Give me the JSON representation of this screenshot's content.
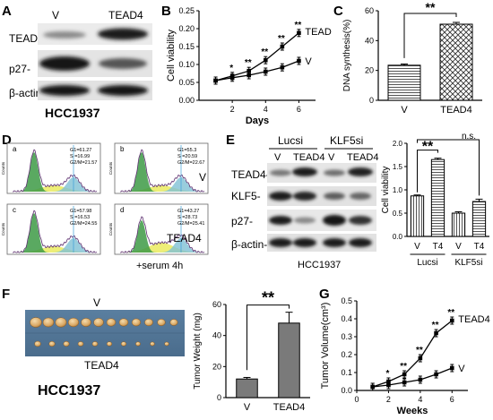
{
  "panels": {
    "a": "A",
    "b": "B",
    "c": "C",
    "d": "D",
    "e": "E",
    "f": "F",
    "g": "G"
  },
  "panelA": {
    "cols": [
      "V",
      "TEAD4"
    ],
    "rows": [
      "TEAD4-",
      "p27-",
      "β-actin-"
    ],
    "cell_line": "HCC1937"
  },
  "panelB": {
    "chart_data": {
      "type": "line",
      "xlabel": "Days",
      "ylabel": "Cell viability",
      "xticks": [
        "2",
        "4",
        "6"
      ],
      "yticks": [
        "0.00",
        "0.05",
        "0.10",
        "0.15",
        "0.20",
        "0.25"
      ],
      "xlim": [
        0,
        7
      ],
      "ylim": [
        0,
        0.25
      ],
      "x": [
        1,
        2,
        3,
        4,
        5,
        6
      ],
      "series": [
        {
          "name": "TEAD4",
          "values": [
            0.055,
            0.068,
            0.082,
            0.112,
            0.15,
            0.188
          ]
        },
        {
          "name": "V",
          "values": [
            0.055,
            0.063,
            0.07,
            0.08,
            0.092,
            0.11
          ]
        }
      ],
      "annotations": [
        "*",
        "**",
        "**",
        "**",
        "**"
      ],
      "series_labels": [
        "TEAD4",
        "V"
      ]
    }
  },
  "panelC": {
    "chart_data": {
      "type": "bar",
      "categories": [
        "V",
        "TEAD4"
      ],
      "values": [
        23.5,
        51
      ],
      "errors": [
        0.8,
        1.2
      ],
      "ylabel": "DNA synthesis(%)",
      "yticks": [
        "0",
        "20",
        "40",
        "60"
      ],
      "ylim": [
        0,
        60
      ],
      "significance": "**"
    }
  },
  "panelD": {
    "plots": [
      {
        "letter": "a",
        "stats": [
          "G1=61.27",
          "S   =16.99",
          "G2/M=21.57"
        ],
        "side": ""
      },
      {
        "letter": "b",
        "stats": [
          "G1=55.3",
          "S  =20.59",
          "G2/M=22.67"
        ],
        "side": "V"
      },
      {
        "letter": "c",
        "stats": [
          "G1=57.98",
          "S   =16.53",
          "G2/M=24.55"
        ],
        "side": ""
      },
      {
        "letter": "d",
        "stats": [
          "G1=43.27",
          "S  =28.73",
          "G2/M=25.41"
        ],
        "side": "TEAD4"
      }
    ],
    "ylabel": "Counts",
    "footer": "+serum 4h"
  },
  "panelE": {
    "groups": [
      "Lucsi",
      "KLF5si"
    ],
    "cols": [
      "V",
      "TEAD4",
      "V",
      "TEAD4"
    ],
    "rows": [
      "TEAD4-",
      "KLF5-",
      "p27-",
      "β-actin-"
    ],
    "cell_line": "HCC1937"
  },
  "panelE2": {
    "chart_data": {
      "type": "bar",
      "categories": [
        "V",
        "T4",
        "V",
        "T4"
      ],
      "groups": [
        "Lucsi",
        "KLF5si"
      ],
      "values": [
        0.87,
        1.65,
        0.5,
        0.75
      ],
      "errors": [
        0.02,
        0.03,
        0.03,
        0.05
      ],
      "ylabel": "Cell viability",
      "yticks": [
        "0.0",
        "0.5",
        "1.0",
        "1.5",
        "2.0"
      ],
      "ylim": [
        0,
        2.0
      ],
      "annotations": [
        "**",
        "n.s."
      ]
    }
  },
  "panelF": {
    "top_label": "V",
    "bottom_label": "TEAD4",
    "cell_line": "HCC1937",
    "chart_data": {
      "type": "bar",
      "categories": [
        "V",
        "TEAD4"
      ],
      "values": [
        12,
        48
      ],
      "errors": [
        1,
        7
      ],
      "ylabel": "Tumor Weight (mg)",
      "yticks": [
        "0",
        "20",
        "40",
        "60"
      ],
      "ylim": [
        0,
        60
      ],
      "significance": "**"
    }
  },
  "panelG": {
    "chart_data": {
      "type": "line",
      "xlabel": "Weeks",
      "ylabel": "Tumor Volume(cm³)",
      "xticks": [
        "0",
        "2",
        "4",
        "6"
      ],
      "yticks": [
        "0.0",
        "0.1",
        "0.2",
        "0.3",
        "0.4",
        "0.5"
      ],
      "xlim": [
        0,
        7
      ],
      "ylim": [
        0,
        0.5
      ],
      "x": [
        1,
        2,
        3,
        4,
        5,
        6
      ],
      "series": [
        {
          "name": "TEAD4",
          "values": [
            0.02,
            0.05,
            0.09,
            0.18,
            0.32,
            0.39
          ]
        },
        {
          "name": "V",
          "values": [
            0.02,
            0.03,
            0.045,
            0.06,
            0.09,
            0.125
          ]
        }
      ],
      "annotations": [
        "*",
        "**",
        "**",
        "**",
        "**"
      ],
      "series_labels": [
        "TEAD4",
        "V"
      ]
    }
  }
}
